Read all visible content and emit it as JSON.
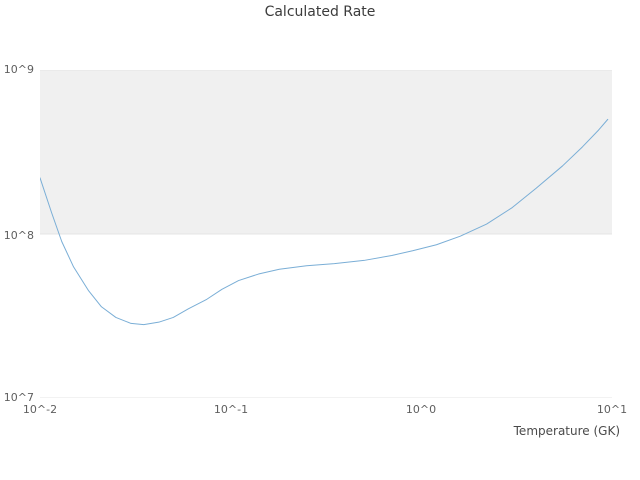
{
  "title": "Calculated Rate",
  "axes": {
    "x_label": "Temperature (GK)",
    "x_tick_labels": [
      "10^-2",
      "10^-1",
      "10^0",
      "10^1"
    ],
    "y_tick_labels": [
      "10^7",
      "10^8",
      "10^9"
    ]
  },
  "chart_data": {
    "type": "line",
    "title": "Calculated Rate",
    "xlabel": "Temperature (GK)",
    "ylabel": "",
    "xscale": "log",
    "yscale": "log",
    "xlim": [
      0.01,
      10
    ],
    "ylim": [
      10000000.0,
      1000000000.0
    ],
    "x_tick_values": [
      0.01,
      0.1,
      1,
      10
    ],
    "y_tick_values": [
      10000000.0,
      100000000.0,
      1000000000.0
    ],
    "x_tick_labels": [
      "10^-2",
      "10^-1",
      "10^0",
      "10^1"
    ],
    "y_tick_labels": [
      "10^7",
      "10^8",
      "10^9"
    ],
    "grid": "horizontal",
    "legend": "none",
    "band": {
      "y_from": 100000000.0,
      "y_to": 1000000000.0,
      "color": "#f0f0f0"
    },
    "grid_color": "#e4e4e4",
    "line_color": "#7aaed6",
    "series_name": "Calculated Rate",
    "x": [
      0.01,
      0.0115,
      0.013,
      0.015,
      0.018,
      0.021,
      0.025,
      0.03,
      0.035,
      0.042,
      0.05,
      0.06,
      0.075,
      0.09,
      0.11,
      0.14,
      0.18,
      0.25,
      0.35,
      0.5,
      0.7,
      0.9,
      1.2,
      1.6,
      2.2,
      3.0,
      4.0,
      5.5,
      7.0,
      8.5,
      9.5
    ],
    "y": [
      220000000.0,
      135000000.0,
      90000000.0,
      63000000.0,
      45000000.0,
      36000000.0,
      31000000.0,
      28500000.0,
      28000000.0,
      29000000.0,
      31000000.0,
      35000000.0,
      40000000.0,
      46000000.0,
      52000000.0,
      57000000.0,
      61000000.0,
      64000000.0,
      66000000.0,
      69000000.0,
      74000000.0,
      79000000.0,
      86000000.0,
      97000000.0,
      115000000.0,
      145000000.0,
      190000000.0,
      260000000.0,
      340000000.0,
      430000000.0,
      500000000.0
    ]
  }
}
